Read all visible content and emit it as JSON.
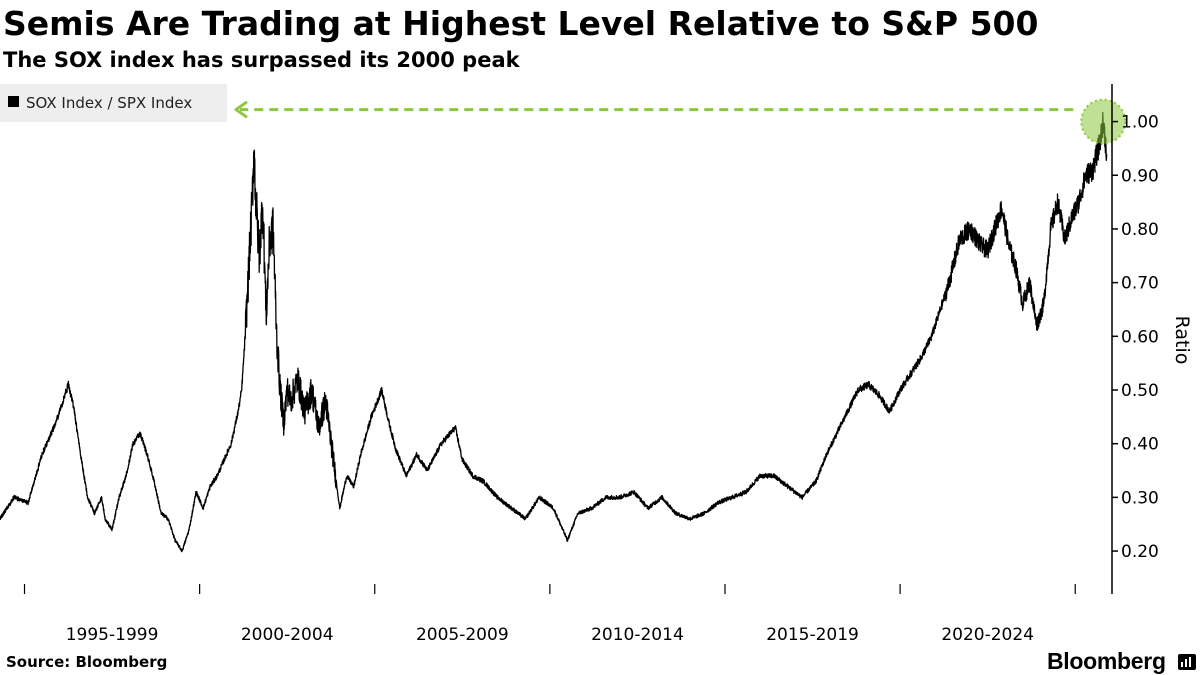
{
  "chart_data": {
    "type": "line",
    "title": "Semis Are Trading at Highest Level Relative to S&P 500",
    "subtitle": "The SOX index has surpassed its 2000 peak",
    "xlabel": "",
    "ylabel": "Ratio",
    "xlim": [
      1993.0,
      2024.75
    ],
    "ylim": [
      0.12,
      1.07
    ],
    "grid": false,
    "legend_position": "top-left",
    "x_tick_labels": [
      "1995-1999",
      "2000-2004",
      "2005-2009",
      "2010-2014",
      "2015-2019",
      "2020-2024"
    ],
    "x_tick_marks": [
      1993.7,
      1998.7,
      2003.7,
      2008.7,
      2013.7,
      2018.7,
      2023.7
    ],
    "y_ticks": [
      0.2,
      0.3,
      0.4,
      0.5,
      0.6,
      0.7,
      0.8,
      0.9,
      1.0
    ],
    "y_tick_labels": [
      "0.20",
      "0.30",
      "0.40",
      "0.50",
      "0.60",
      "0.70",
      "0.80",
      "0.90",
      "1.00"
    ],
    "series": [
      {
        "name": "SOX Index / SPX Index",
        "color": "#000000",
        "x": [
          1993.0,
          1993.4,
          1993.8,
          1994.2,
          1994.6,
          1994.95,
          1995.1,
          1995.3,
          1995.5,
          1995.7,
          1995.9,
          1996.0,
          1996.2,
          1996.4,
          1996.6,
          1996.8,
          1997.0,
          1997.2,
          1997.4,
          1997.6,
          1997.8,
          1998.0,
          1998.2,
          1998.4,
          1998.6,
          1998.8,
          1999.0,
          1999.2,
          1999.4,
          1999.6,
          1999.8,
          1999.9,
          2000.0,
          2000.1,
          2000.2,
          2000.25,
          2000.3,
          2000.4,
          2000.5,
          2000.6,
          2000.7,
          2000.8,
          2000.9,
          2001.0,
          2001.1,
          2001.2,
          2001.3,
          2001.5,
          2001.7,
          2001.9,
          2002.1,
          2002.3,
          2002.5,
          2002.7,
          2002.9,
          2003.1,
          2003.3,
          2003.6,
          2003.9,
          2004.1,
          2004.3,
          2004.6,
          2004.9,
          2005.2,
          2005.6,
          2006.0,
          2006.2,
          2006.5,
          2006.8,
          2007.2,
          2007.6,
          2008.0,
          2008.4,
          2008.8,
          2009.2,
          2009.5,
          2009.9,
          2010.3,
          2010.7,
          2011.1,
          2011.5,
          2011.9,
          2012.3,
          2012.7,
          2013.1,
          2013.5,
          2013.9,
          2014.3,
          2014.7,
          2015.1,
          2015.5,
          2015.9,
          2016.3,
          2016.6,
          2016.9,
          2017.2,
          2017.5,
          2017.8,
          2018.1,
          2018.4,
          2018.7,
          2019.0,
          2019.3,
          2019.6,
          2019.9,
          2020.1,
          2020.4,
          2020.7,
          2021.0,
          2021.2,
          2021.4,
          2021.6,
          2021.8,
          2022.0,
          2022.2,
          2022.4,
          2022.6,
          2022.8,
          2023.0,
          2023.2,
          2023.4,
          2023.6,
          2023.8,
          2024.0,
          2024.2,
          2024.4,
          2024.5,
          2024.6
        ],
        "values": [
          0.26,
          0.3,
          0.29,
          0.38,
          0.44,
          0.51,
          0.47,
          0.38,
          0.3,
          0.27,
          0.3,
          0.26,
          0.24,
          0.3,
          0.34,
          0.4,
          0.42,
          0.38,
          0.33,
          0.27,
          0.26,
          0.22,
          0.2,
          0.24,
          0.31,
          0.28,
          0.32,
          0.34,
          0.37,
          0.4,
          0.46,
          0.5,
          0.6,
          0.72,
          0.85,
          0.95,
          0.86,
          0.75,
          0.85,
          0.64,
          0.78,
          0.8,
          0.6,
          0.5,
          0.44,
          0.5,
          0.48,
          0.52,
          0.46,
          0.5,
          0.43,
          0.48,
          0.38,
          0.28,
          0.34,
          0.32,
          0.38,
          0.45,
          0.5,
          0.44,
          0.39,
          0.34,
          0.38,
          0.35,
          0.4,
          0.43,
          0.37,
          0.34,
          0.33,
          0.3,
          0.28,
          0.26,
          0.3,
          0.28,
          0.22,
          0.27,
          0.28,
          0.3,
          0.3,
          0.31,
          0.28,
          0.3,
          0.27,
          0.26,
          0.27,
          0.29,
          0.3,
          0.31,
          0.34,
          0.34,
          0.32,
          0.3,
          0.33,
          0.38,
          0.42,
          0.46,
          0.5,
          0.51,
          0.49,
          0.46,
          0.5,
          0.53,
          0.56,
          0.6,
          0.66,
          0.7,
          0.78,
          0.8,
          0.77,
          0.76,
          0.8,
          0.84,
          0.77,
          0.73,
          0.66,
          0.7,
          0.62,
          0.66,
          0.8,
          0.85,
          0.78,
          0.82,
          0.85,
          0.9,
          0.91,
          0.96,
          1.0,
          0.94
        ]
      }
    ],
    "annotations": [
      {
        "type": "highlight-circle",
        "x": 2024.5,
        "y": 1.0,
        "color": "#8dc63f",
        "note": "current ratio marker"
      },
      {
        "type": "dashed-arrow",
        "from": "highlight-circle",
        "to": "legend",
        "color": "#8dc63f"
      }
    ]
  },
  "footer": {
    "source": "Source: Bloomberg",
    "brand": "Bloomberg"
  }
}
